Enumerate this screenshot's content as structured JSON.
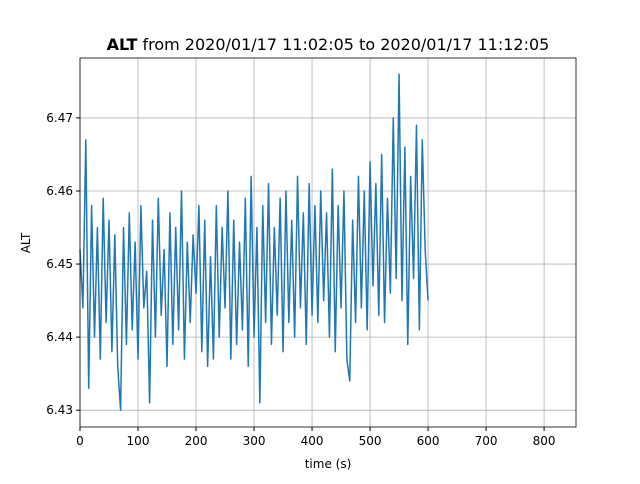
{
  "chart_data": {
    "type": "line",
    "title_bold": "ALT",
    "title": "from 2020/01/17 11:02:05 to 2020/01/17 11:12:05",
    "xlabel": "time (s)",
    "ylabel": "ALT",
    "xlim": [
      0,
      855
    ],
    "ylim": [
      6.4277,
      6.4782
    ],
    "xticks": [
      0,
      100,
      200,
      300,
      400,
      500,
      600,
      700,
      800
    ],
    "yticks": [
      6.43,
      6.44,
      6.45,
      6.46,
      6.47
    ],
    "grid": true,
    "x": [
      0,
      5,
      10,
      15,
      20,
      25,
      30,
      35,
      40,
      45,
      50,
      55,
      60,
      65,
      70,
      75,
      80,
      85,
      90,
      95,
      100,
      105,
      110,
      115,
      120,
      125,
      130,
      135,
      140,
      145,
      150,
      155,
      160,
      165,
      170,
      175,
      180,
      185,
      190,
      195,
      200,
      205,
      210,
      215,
      220,
      225,
      230,
      235,
      240,
      245,
      250,
      255,
      260,
      265,
      270,
      275,
      280,
      285,
      290,
      295,
      300,
      305,
      310,
      315,
      320,
      325,
      330,
      335,
      340,
      345,
      350,
      355,
      360,
      365,
      370,
      375,
      380,
      385,
      390,
      395,
      400,
      405,
      410,
      415,
      420,
      425,
      430,
      435,
      440,
      445,
      450,
      455,
      460,
      465,
      470,
      475,
      480,
      485,
      490,
      495,
      500,
      505,
      510,
      515,
      520,
      525,
      530,
      535,
      540,
      545,
      550,
      555,
      560,
      565,
      570,
      575,
      580,
      585,
      590,
      595,
      600
    ],
    "series": [
      {
        "color": "#1f77b4",
        "values": [
          6.452,
          6.444,
          6.467,
          6.433,
          6.458,
          6.44,
          6.455,
          6.437,
          6.459,
          6.442,
          6.456,
          6.438,
          6.454,
          6.436,
          6.43,
          6.455,
          6.439,
          6.457,
          6.441,
          6.453,
          6.437,
          6.458,
          6.444,
          6.449,
          6.431,
          6.456,
          6.44,
          6.459,
          6.443,
          6.452,
          6.436,
          6.457,
          6.439,
          6.455,
          6.441,
          6.46,
          6.437,
          6.453,
          6.442,
          6.454,
          6.446,
          6.458,
          6.438,
          6.456,
          6.436,
          6.451,
          6.437,
          6.458,
          6.44,
          6.455,
          6.444,
          6.46,
          6.437,
          6.456,
          6.439,
          6.453,
          6.441,
          6.459,
          6.436,
          6.462,
          6.44,
          6.455,
          6.431,
          6.458,
          6.442,
          6.461,
          6.439,
          6.455,
          6.443,
          6.459,
          6.438,
          6.46,
          6.442,
          6.456,
          6.44,
          6.462,
          6.444,
          6.457,
          6.439,
          6.461,
          6.443,
          6.458,
          6.442,
          6.46,
          6.445,
          6.457,
          6.44,
          6.463,
          6.438,
          6.458,
          6.444,
          6.46,
          6.437,
          6.434,
          6.456,
          6.442,
          6.462,
          6.444,
          6.46,
          6.441,
          6.464,
          6.447,
          6.461,
          6.443,
          6.465,
          6.442,
          6.459,
          6.446,
          6.47,
          6.448,
          6.476,
          6.445,
          6.466,
          6.439,
          6.462,
          6.448,
          6.469,
          6.441,
          6.467,
          6.452,
          6.445
        ]
      }
    ]
  }
}
